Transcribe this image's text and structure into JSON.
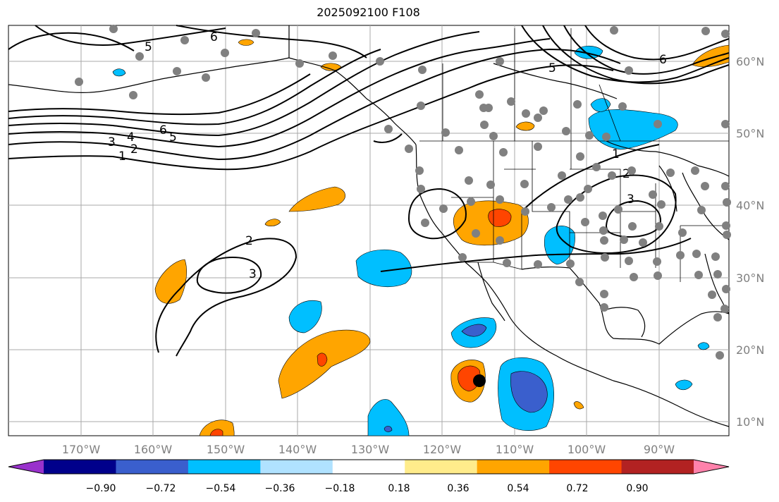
{
  "title": "2025092100 F108",
  "latitude_labels": [
    "60°N",
    "50°N",
    "40°N",
    "30°N",
    "20°N",
    "10°N"
  ],
  "longitude_labels": [
    "170°W",
    "160°W",
    "150°W",
    "140°W",
    "130°W",
    "120°W",
    "110°W",
    "100°W",
    "90°W"
  ],
  "colorbar": {
    "tick_labels": [
      "−0.90",
      "−0.72",
      "−0.54",
      "−0.36",
      "−0.18",
      "0.18",
      "0.36",
      "0.54",
      "0.72",
      "0.90"
    ],
    "colors": [
      "#9932cc",
      "#00008b",
      "#3a5fcd",
      "#00bfff",
      "#b0e2ff",
      "#ffffff",
      "#ffec8b",
      "#ffa500",
      "#ff4500",
      "#b22222",
      "#ff82ab"
    ]
  },
  "contour_labels": [
    "6",
    "5",
    "6",
    "5",
    "6",
    "5",
    "4",
    "3",
    "2",
    "1",
    "2",
    "3",
    "1",
    "2",
    "3"
  ],
  "colors": {
    "gridline": "#a9a9a9",
    "contour": "#000000",
    "station_dot": "#808080",
    "storm_marker": "#000000"
  }
}
